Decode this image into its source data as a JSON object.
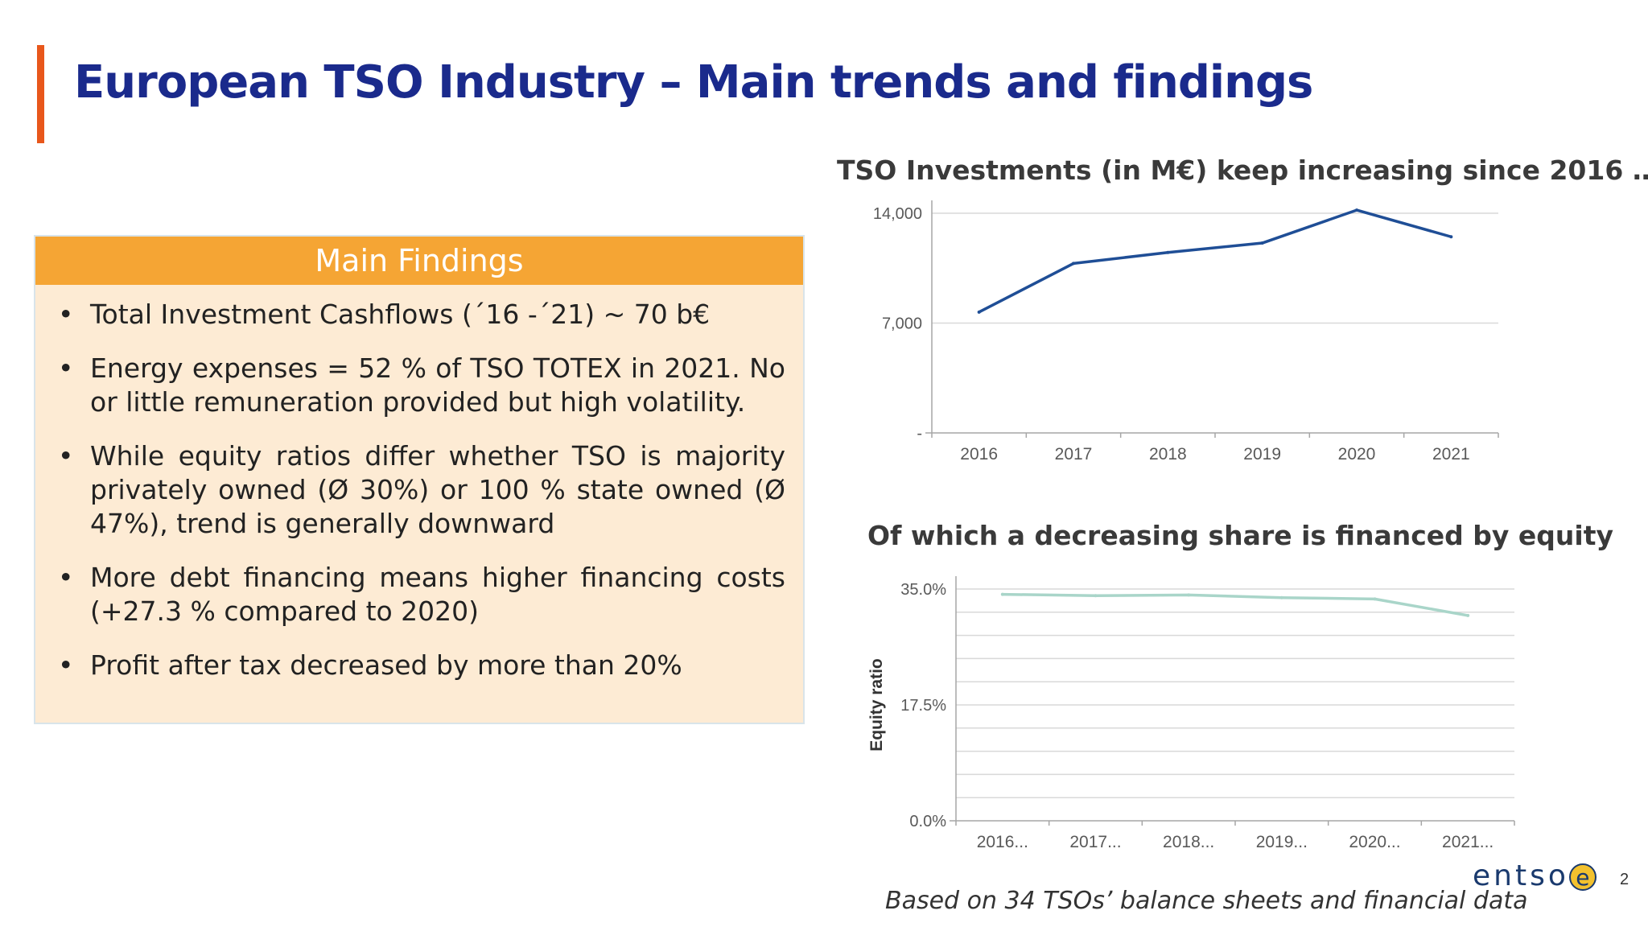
{
  "title": "European TSO Industry  – Main trends and findings",
  "findings": {
    "header": "Main Findings",
    "bullet_char": "•",
    "items": [
      "Total Investment Cashflows (´16 -´21) ~ 70 b€",
      "Energy expenses = 52 % of TSO TOTEX in 2021. No or little remuneration provided but high volatility.",
      "While equity ratios differ whether TSO is majority privately owned (Ø 30%) or 100 % state owned (Ø  47%), trend is generally downward",
      " More debt financing means higher financing costs (+27.3 % compared to 2020)",
      "Profit after tax decreased by more than 20%"
    ]
  },
  "footnote": "Based on 34 TSOs’ balance sheets and financial data",
  "logo": {
    "text": "entso",
    "mark": "e"
  },
  "page_number": "2",
  "colors": {
    "title": "#1a2a8c",
    "accent": "#e8571b",
    "header": "#f5a534",
    "box": "#fdebd4",
    "line1": "#1f4e96",
    "line2": "#a9d5c9"
  },
  "chart_data": [
    {
      "type": "line",
      "title": "TSO Investments (in M€) keep increasing since 2016 …",
      "categories": [
        "2016",
        "2017",
        "2018",
        "2019",
        "2020",
        "2021"
      ],
      "values": [
        7700,
        10800,
        11500,
        12100,
        14200,
        12500
      ],
      "ylim": [
        0,
        14000
      ],
      "yticks": [
        0,
        7000,
        14000
      ],
      "ytick_labels": [
        "-",
        "7,000",
        "14,000"
      ],
      "xlabel": "",
      "ylabel": "",
      "grid": true
    },
    {
      "type": "line",
      "title": "Of which a decreasing share is financed by equity",
      "categories": [
        "2016...",
        "2017...",
        "2018...",
        "2019...",
        "2020...",
        "2021..."
      ],
      "values": [
        34.2,
        34.0,
        34.1,
        33.7,
        33.5,
        31.0
      ],
      "ylim": [
        0,
        35
      ],
      "yticks": [
        0,
        17.5,
        35
      ],
      "ytick_labels": [
        "0.0%",
        "17.5%",
        "35.0%"
      ],
      "gridlines": 10,
      "xlabel": "",
      "ylabel": "Equity ratio",
      "grid": true
    }
  ]
}
